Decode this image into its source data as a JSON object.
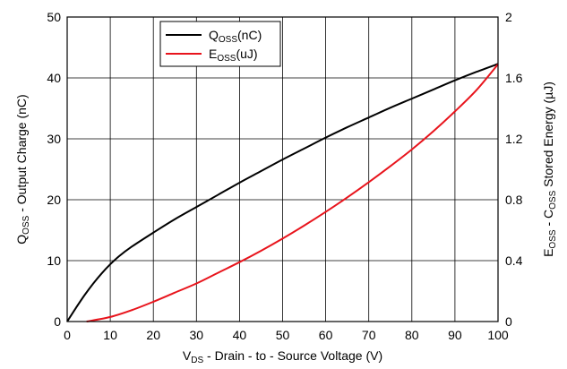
{
  "chart_data": {
    "type": "line",
    "title": "",
    "xlabel": {
      "prefix": "V",
      "sub": "DS",
      "suffix": " - Drain - to - Source Voltage (V)"
    },
    "ylabel_left": {
      "prefix": "Q",
      "sub": "OSS",
      "suffix": " - Output Charge (nC)"
    },
    "ylabel_right": {
      "prefix": "E",
      "sub": "OSS",
      "mid": " - C",
      "sub2": "OSS",
      "suffix": " Stored Energy (µJ)"
    },
    "xlim": [
      0,
      100
    ],
    "ylim_left": [
      0,
      50
    ],
    "ylim_right": [
      0,
      2
    ],
    "x_ticks": [
      "0",
      "10",
      "20",
      "30",
      "40",
      "50",
      "60",
      "70",
      "80",
      "90",
      "100"
    ],
    "y_left_ticks": [
      "0",
      "10",
      "20",
      "30",
      "40",
      "50"
    ],
    "y_right_ticks": [
      "0",
      "0.4",
      "0.8",
      "1.2",
      "1.6",
      "2"
    ],
    "grid": true,
    "legend_position": "top-center",
    "series": [
      {
        "name": "QOSS(nC)",
        "legend": {
          "prefix": "Q",
          "sub": "OSS",
          "suffix": "(nC)"
        },
        "axis": "left",
        "color": "#000000",
        "points": [
          [
            0,
            0
          ],
          [
            2,
            2.2
          ],
          [
            4,
            4.3
          ],
          [
            6,
            6.2
          ],
          [
            8,
            7.9
          ],
          [
            10,
            9.4
          ],
          [
            12,
            10.7
          ],
          [
            15,
            12.3
          ],
          [
            20,
            14.6
          ],
          [
            25,
            16.8
          ],
          [
            30,
            18.8
          ],
          [
            35,
            20.8
          ],
          [
            40,
            22.8
          ],
          [
            45,
            24.7
          ],
          [
            50,
            26.6
          ],
          [
            55,
            28.4
          ],
          [
            60,
            30.2
          ],
          [
            65,
            31.9
          ],
          [
            70,
            33.5
          ],
          [
            75,
            35.1
          ],
          [
            80,
            36.6
          ],
          [
            85,
            38.1
          ],
          [
            90,
            39.6
          ],
          [
            95,
            41.0
          ],
          [
            100,
            42.3
          ]
        ]
      },
      {
        "name": "EOSS(uJ)",
        "legend": {
          "prefix": "E",
          "sub": "OSS",
          "suffix": "(uJ)"
        },
        "axis": "right",
        "color": "#e8141c",
        "points": [
          [
            4.5,
            0
          ],
          [
            10,
            0.03
          ],
          [
            15,
            0.075
          ],
          [
            20,
            0.13
          ],
          [
            25,
            0.19
          ],
          [
            30,
            0.25
          ],
          [
            35,
            0.32
          ],
          [
            40,
            0.39
          ],
          [
            45,
            0.465
          ],
          [
            50,
            0.545
          ],
          [
            55,
            0.63
          ],
          [
            60,
            0.72
          ],
          [
            65,
            0.815
          ],
          [
            70,
            0.915
          ],
          [
            75,
            1.02
          ],
          [
            80,
            1.13
          ],
          [
            85,
            1.25
          ],
          [
            90,
            1.38
          ],
          [
            95,
            1.52
          ],
          [
            100,
            1.69
          ]
        ]
      }
    ]
  }
}
